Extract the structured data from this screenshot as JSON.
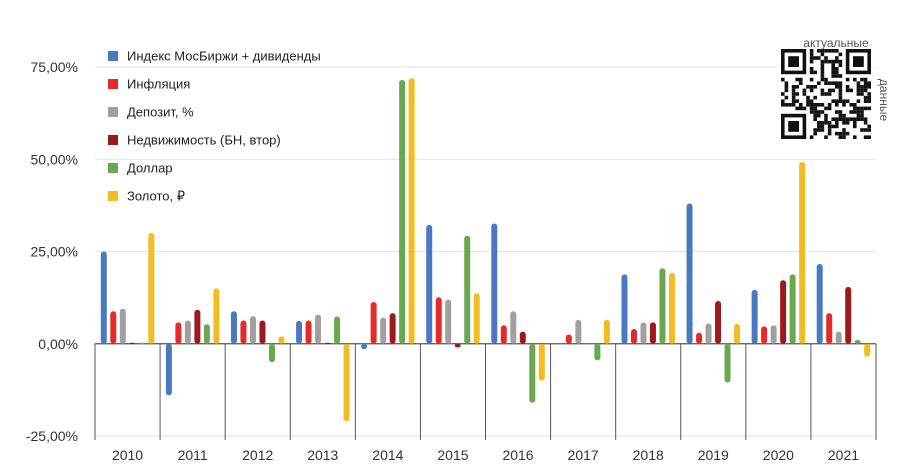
{
  "chart_data": {
    "type": "bar",
    "title": "",
    "xlabel": "",
    "ylabel": "",
    "categories": [
      "2010",
      "2011",
      "2012",
      "2013",
      "2014",
      "2015",
      "2016",
      "2017",
      "2018",
      "2019",
      "2020",
      "2021"
    ],
    "ylim": [
      -25,
      75
    ],
    "yticks": [
      -25,
      0,
      25,
      50,
      75
    ],
    "ytick_labels": [
      "-25,00%",
      "0,00%",
      "25,00%",
      "50,00%",
      "75,00%"
    ],
    "grid": true,
    "legend_position": "top-left",
    "series": [
      {
        "name": "Индекс МосБиржи + дивиденды",
        "color": "#4a78c1",
        "values": [
          25.0,
          -14.0,
          8.8,
          6.2,
          -1.5,
          32.2,
          32.6,
          null,
          18.8,
          38.0,
          14.6,
          21.6
        ]
      },
      {
        "name": "Инфляция",
        "color": "#e52a2a",
        "values": [
          8.8,
          5.8,
          6.3,
          6.3,
          11.3,
          12.6,
          5.0,
          2.5,
          4.0,
          3.0,
          4.7,
          8.3
        ]
      },
      {
        "name": "Депозит, %",
        "color": "#a0a0a0",
        "values": [
          9.5,
          6.3,
          7.5,
          7.9,
          7.1,
          12.0,
          8.8,
          6.5,
          5.8,
          5.5,
          5.0,
          3.3
        ]
      },
      {
        "name": "Недвижимость (БН, втор)",
        "color": "#9e1a1a",
        "values": [
          0.3,
          9.2,
          6.3,
          0.3,
          8.3,
          -1.0,
          3.3,
          null,
          5.8,
          11.6,
          17.2,
          15.4
        ]
      },
      {
        "name": "Доллар",
        "color": "#6aa84f",
        "values": [
          0.3,
          5.3,
          -5.0,
          7.4,
          71.5,
          29.3,
          -16.0,
          -4.5,
          20.5,
          -10.5,
          18.8,
          1.0
        ]
      },
      {
        "name": "Золото, ₽",
        "color": "#f2bd20",
        "values": [
          30.0,
          15.0,
          2.0,
          -21.0,
          72.0,
          13.7,
          -10.0,
          6.5,
          19.2,
          5.4,
          49.3,
          -3.5
        ]
      }
    ]
  },
  "qr": {
    "caption_top": "актуальные",
    "caption_side": "данные"
  }
}
